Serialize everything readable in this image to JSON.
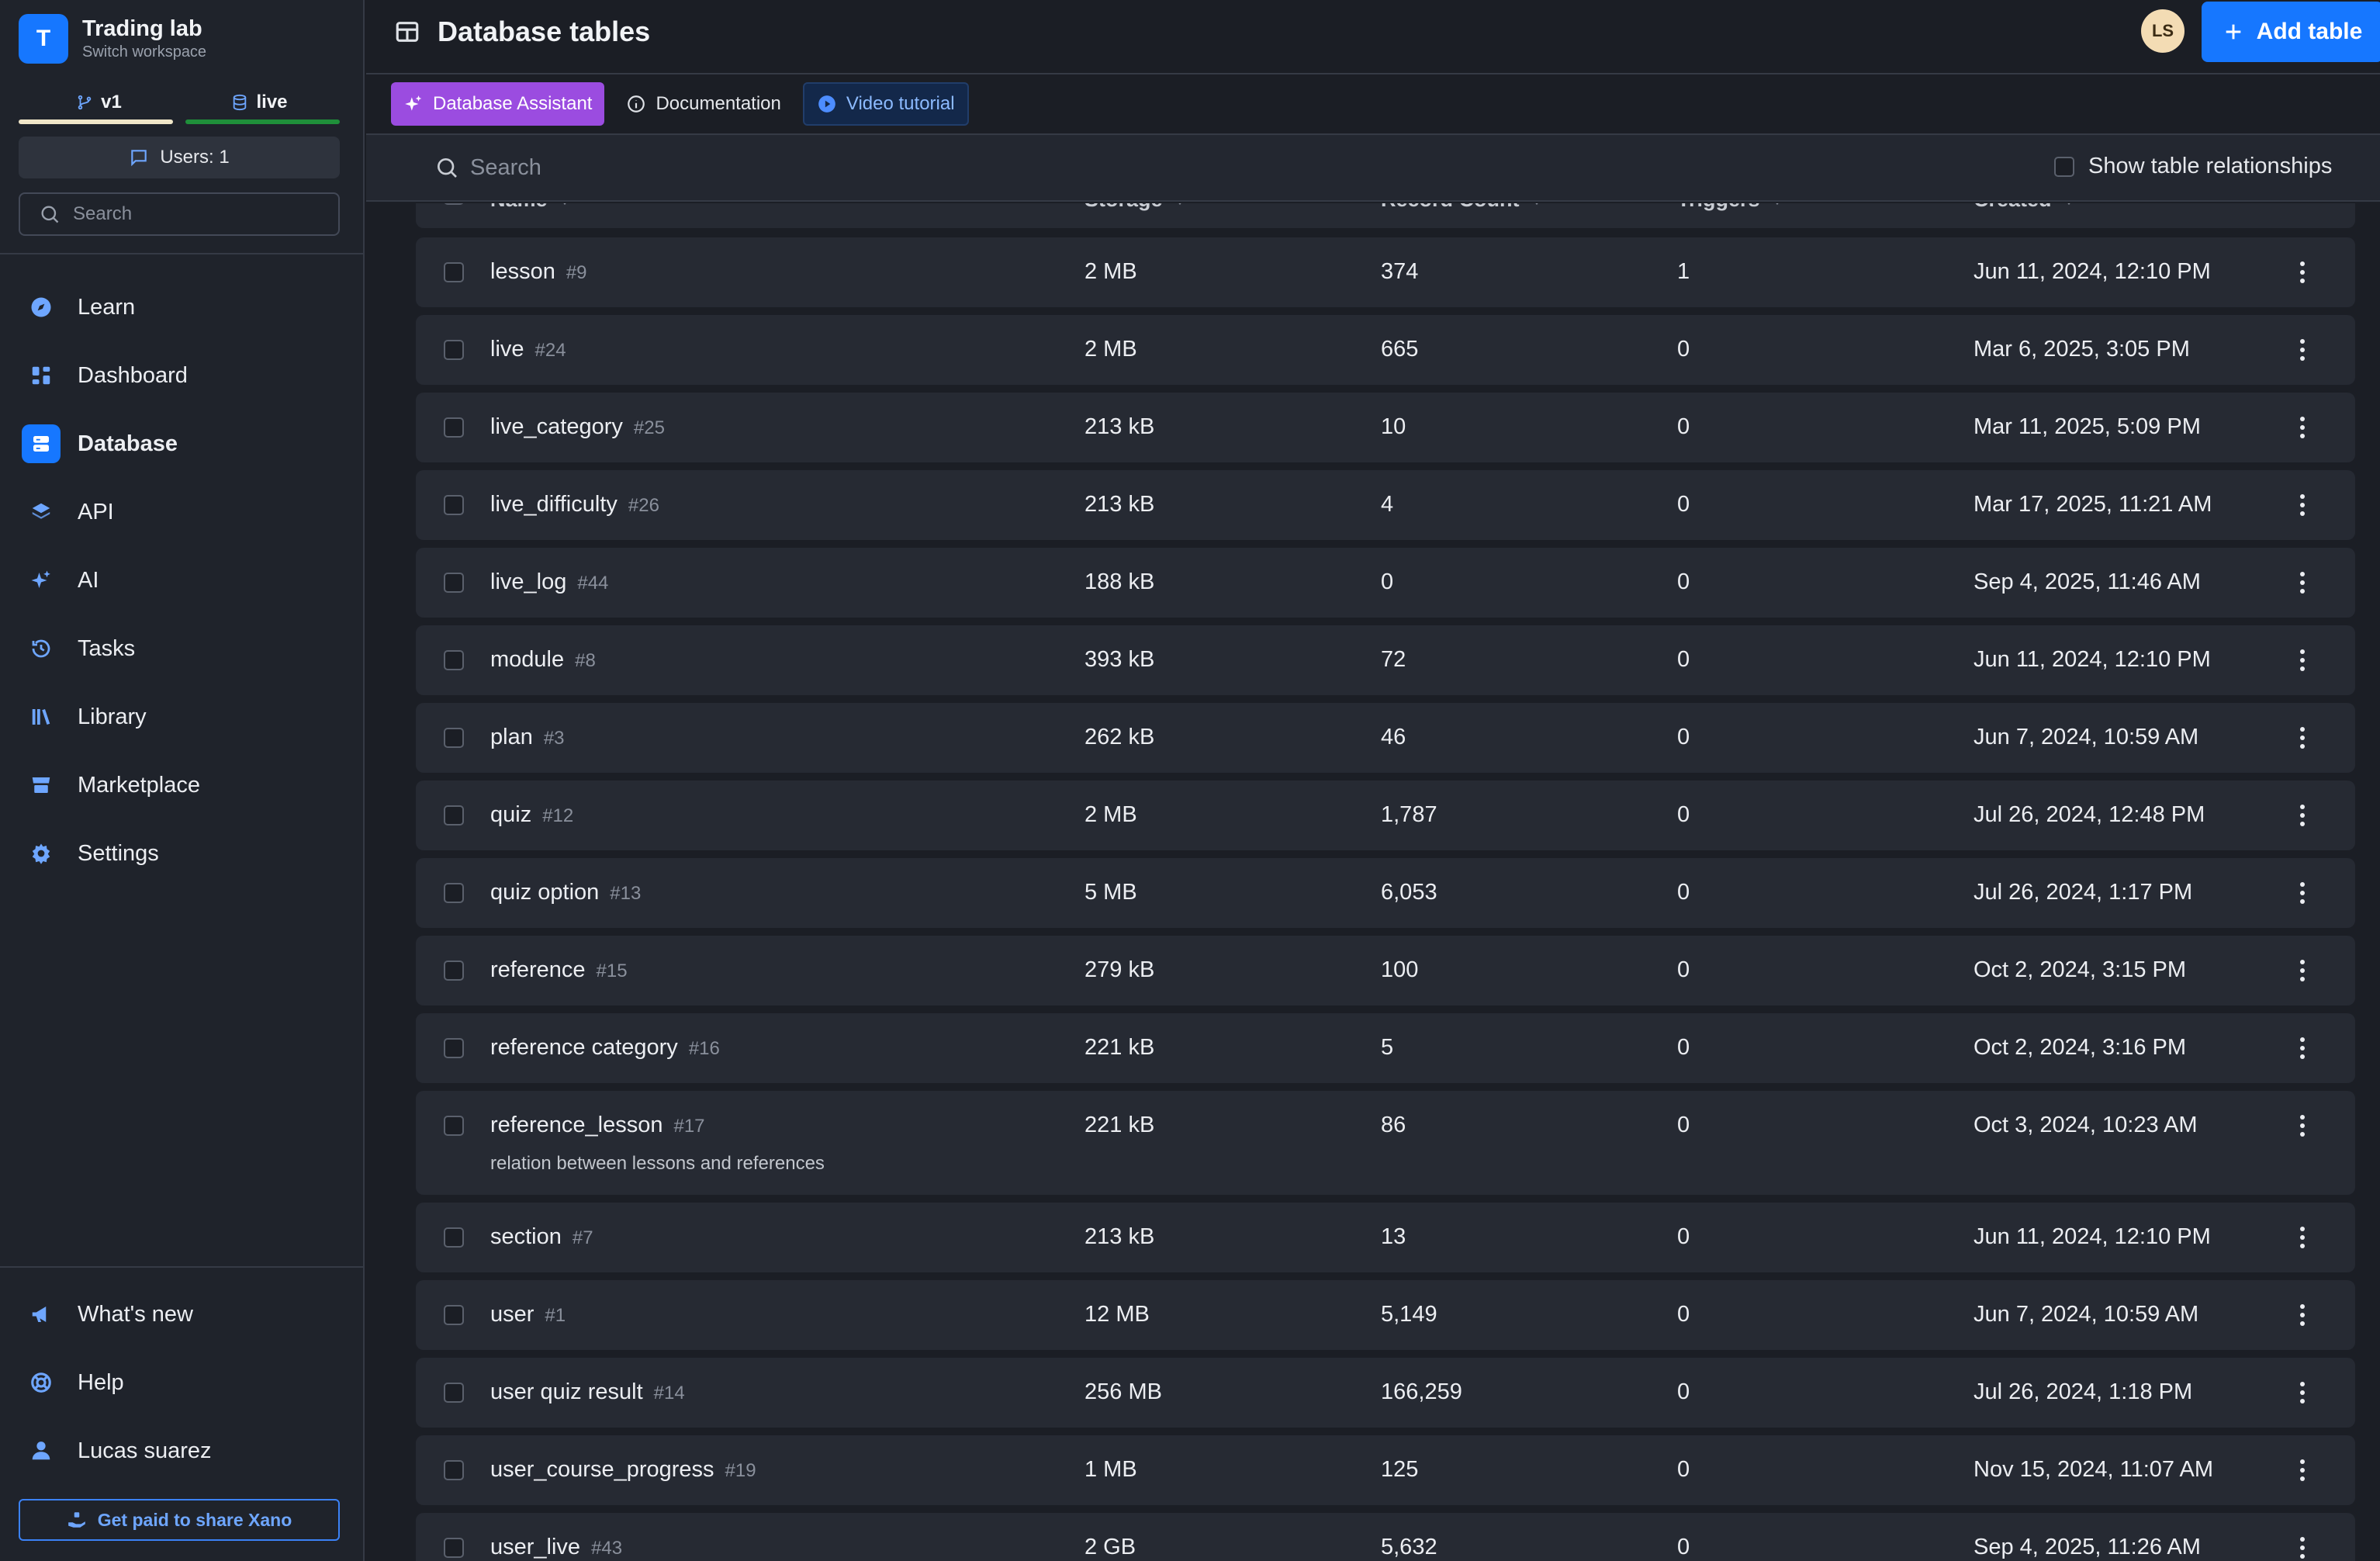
{
  "workspace": {
    "initial": "T",
    "name": "Trading lab",
    "subtitle": "Switch workspace"
  },
  "branches": [
    {
      "label": "v1"
    },
    {
      "label": "live"
    }
  ],
  "users_button": "Users: 1",
  "sidebar_search": {
    "placeholder": "Search"
  },
  "nav": [
    {
      "label": "Learn",
      "icon": "compass-icon"
    },
    {
      "label": "Dashboard",
      "icon": "dashboard-icon"
    },
    {
      "label": "Database",
      "icon": "database-icon",
      "active": true
    },
    {
      "label": "API",
      "icon": "layers-icon"
    },
    {
      "label": "AI",
      "icon": "sparkles-icon"
    },
    {
      "label": "Tasks",
      "icon": "history-icon"
    },
    {
      "label": "Library",
      "icon": "library-icon"
    },
    {
      "label": "Marketplace",
      "icon": "store-icon"
    },
    {
      "label": "Settings",
      "icon": "gear-icon"
    }
  ],
  "bottom_nav": [
    {
      "label": "What's new",
      "icon": "megaphone-icon"
    },
    {
      "label": "Help",
      "icon": "lifebuoy-icon"
    },
    {
      "label": "Lucas suarez",
      "icon": "user-icon"
    }
  ],
  "share_button": "Get paid to share Xano",
  "header": {
    "title": "Database tables",
    "avatar_initials": "LS",
    "add_table_label": "Add table"
  },
  "subtabs": [
    {
      "label": "Database Assistant"
    },
    {
      "label": "Documentation"
    },
    {
      "label": "Video tutorial"
    }
  ],
  "search": {
    "placeholder": "Search",
    "relationships_label": "Show table relationships"
  },
  "columns": {
    "name": "Name",
    "storage": "Storage",
    "records": "Record Count",
    "triggers": "Triggers",
    "created": "Created"
  },
  "rows": [
    {
      "name": "lesson",
      "id": "#9",
      "storage": "2 MB",
      "records": "374",
      "triggers": "1",
      "created": "Jun 11, 2024, 12:10 PM"
    },
    {
      "name": "live",
      "id": "#24",
      "storage": "2 MB",
      "records": "665",
      "triggers": "0",
      "created": "Mar 6, 2025, 3:05 PM"
    },
    {
      "name": "live_category",
      "id": "#25",
      "storage": "213 kB",
      "records": "10",
      "triggers": "0",
      "created": "Mar 11, 2025, 5:09 PM"
    },
    {
      "name": "live_difficulty",
      "id": "#26",
      "storage": "213 kB",
      "records": "4",
      "triggers": "0",
      "created": "Mar 17, 2025, 11:21 AM"
    },
    {
      "name": "live_log",
      "id": "#44",
      "storage": "188 kB",
      "records": "0",
      "triggers": "0",
      "created": "Sep 4, 2025, 11:46 AM"
    },
    {
      "name": "module",
      "id": "#8",
      "storage": "393 kB",
      "records": "72",
      "triggers": "0",
      "created": "Jun 11, 2024, 12:10 PM"
    },
    {
      "name": "plan",
      "id": "#3",
      "storage": "262 kB",
      "records": "46",
      "triggers": "0",
      "created": "Jun 7, 2024, 10:59 AM"
    },
    {
      "name": "quiz",
      "id": "#12",
      "storage": "2 MB",
      "records": "1,787",
      "triggers": "0",
      "created": "Jul 26, 2024, 12:48 PM"
    },
    {
      "name": "quiz option",
      "id": "#13",
      "storage": "5 MB",
      "records": "6,053",
      "triggers": "0",
      "created": "Jul 26, 2024, 1:17 PM"
    },
    {
      "name": "reference",
      "id": "#15",
      "storage": "279 kB",
      "records": "100",
      "triggers": "0",
      "created": "Oct 2, 2024, 3:15 PM"
    },
    {
      "name": "reference category",
      "id": "#16",
      "storage": "221 kB",
      "records": "5",
      "triggers": "0",
      "created": "Oct 2, 2024, 3:16 PM"
    },
    {
      "name": "reference_lesson",
      "id": "#17",
      "description": "relation between lessons and references",
      "storage": "221 kB",
      "records": "86",
      "triggers": "0",
      "created": "Oct 3, 2024, 10:23 AM"
    },
    {
      "name": "section",
      "id": "#7",
      "storage": "213 kB",
      "records": "13",
      "triggers": "0",
      "created": "Jun 11, 2024, 12:10 PM"
    },
    {
      "name": "user",
      "id": "#1",
      "storage": "12 MB",
      "records": "5,149",
      "triggers": "0",
      "created": "Jun 7, 2024, 10:59 AM"
    },
    {
      "name": "user quiz result",
      "id": "#14",
      "storage": "256 MB",
      "records": "166,259",
      "triggers": "0",
      "created": "Jul 26, 2024, 1:18 PM"
    },
    {
      "name": "user_course_progress",
      "id": "#19",
      "storage": "1 MB",
      "records": "125",
      "triggers": "0",
      "created": "Nov 15, 2024, 11:07 AM"
    },
    {
      "name": "user_live",
      "id": "#43",
      "storage": "2 GB",
      "records": "5,632",
      "triggers": "0",
      "created": "Sep 4, 2025, 11:26 AM"
    }
  ],
  "colors": {
    "accent": "#1677ff",
    "assistant": "#9b4ce0",
    "background": "#1b1e25",
    "row": "#262a33"
  }
}
